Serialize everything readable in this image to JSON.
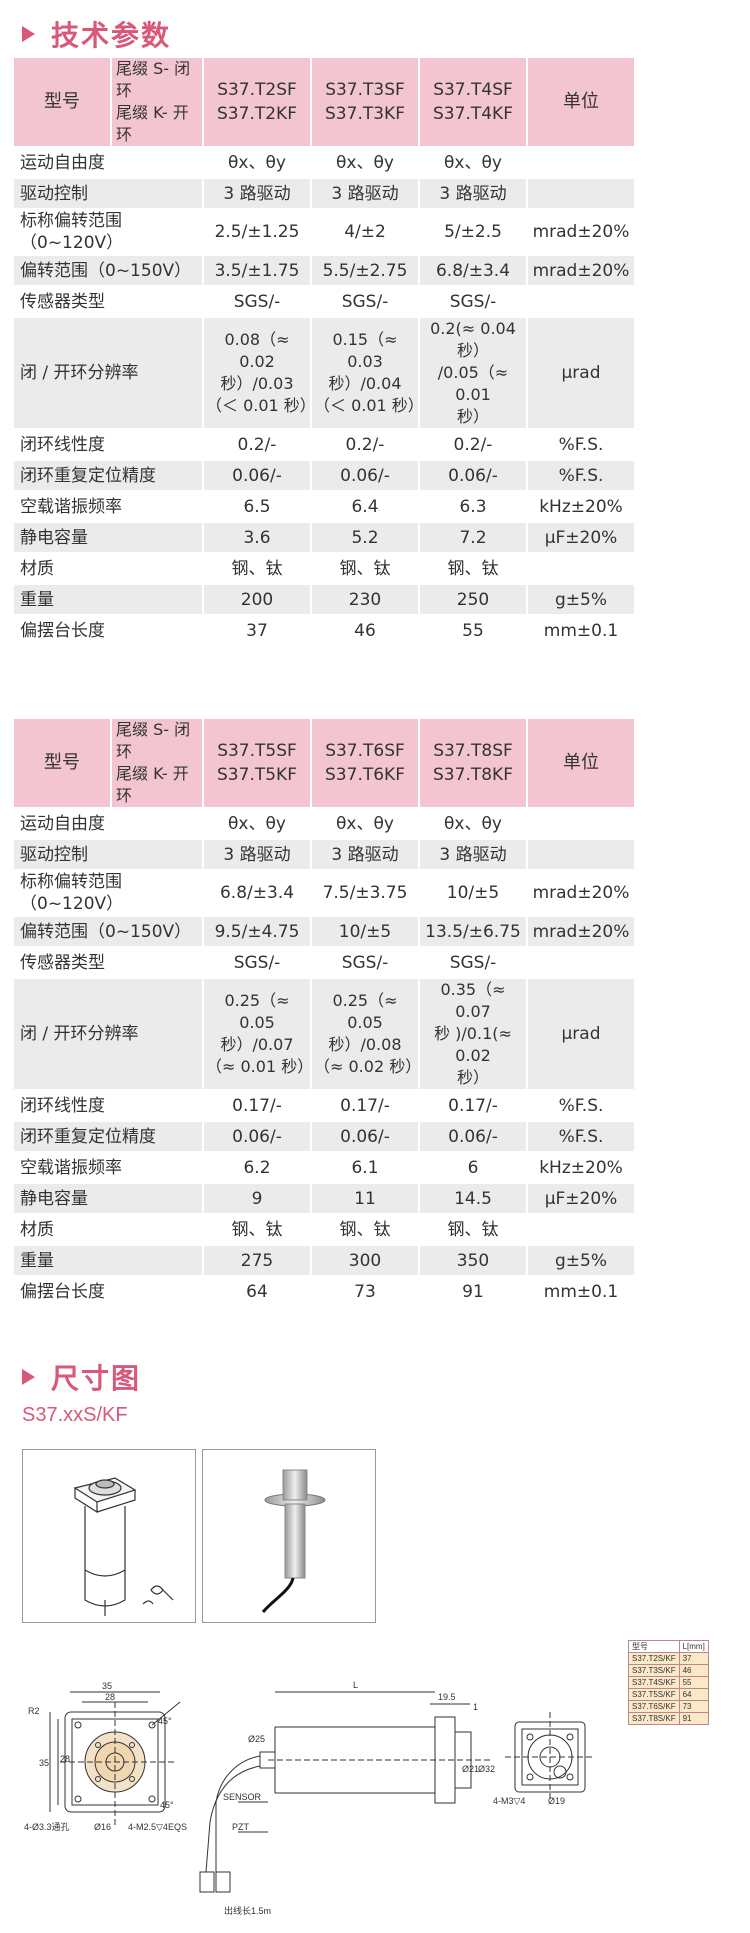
{
  "sections": {
    "tech_params": "技术参数",
    "dimensions": "尺寸图",
    "dimensions_subtitle": "S37.xxS/KF"
  },
  "table1": {
    "header": {
      "model_label": "型号",
      "suffix_s": "尾缀 S- 闭环",
      "suffix_k": "尾缀 K- 开环",
      "models": [
        {
          "a": "S37.T2SF",
          "b": "S37.T2KF"
        },
        {
          "a": "S37.T3SF",
          "b": "S37.T3KF"
        },
        {
          "a": "S37.T4SF",
          "b": "S37.T4KF"
        }
      ],
      "unit_label": "单位"
    },
    "rows": [
      {
        "label": "运动自由度",
        "v": [
          "θx、θy",
          "θx、θy",
          "θx、θy"
        ],
        "unit": ""
      },
      {
        "label": "驱动控制",
        "v": [
          "3 路驱动",
          "3 路驱动",
          "3 路驱动"
        ],
        "unit": ""
      },
      {
        "label": "标称偏转范围（0~120V）",
        "v": [
          "2.5/±1.25",
          "4/±2",
          "5/±2.5"
        ],
        "unit": "mrad±20%"
      },
      {
        "label": "偏转范围（0~150V）",
        "v": [
          "3.5/±1.75",
          "5.5/±2.75",
          "6.8/±3.4"
        ],
        "unit": "mrad±20%"
      },
      {
        "label": "传感器类型",
        "v": [
          "SGS/-",
          "SGS/-",
          "SGS/-"
        ],
        "unit": ""
      },
      {
        "label": "闭 / 开环分辨率",
        "v": [
          [
            "0.08（≈ 0.02",
            "秒）/0.03",
            "（＜ 0.01 秒）"
          ],
          [
            "0.15（≈ 0.03",
            "秒）/0.04",
            "（＜ 0.01 秒）"
          ],
          [
            "0.2(≈ 0.04 秒）",
            "/0.05（≈ 0.01",
            "秒）"
          ]
        ],
        "unit": "μrad"
      },
      {
        "label": "闭环线性度",
        "v": [
          "0.2/-",
          "0.2/-",
          "0.2/-"
        ],
        "unit": "%F.S."
      },
      {
        "label": "闭环重复定位精度",
        "v": [
          "0.06/-",
          "0.06/-",
          "0.06/-"
        ],
        "unit": "%F.S."
      },
      {
        "label": "空载谐振频率",
        "v": [
          "6.5",
          "6.4",
          "6.3"
        ],
        "unit": "kHz±20%"
      },
      {
        "label": "静电容量",
        "v": [
          "3.6",
          "5.2",
          "7.2"
        ],
        "unit": "μF±20%"
      },
      {
        "label": "材质",
        "v": [
          "钢、钛",
          "钢、钛",
          "钢、钛"
        ],
        "unit": ""
      },
      {
        "label": "重量",
        "v": [
          "200",
          "230",
          "250"
        ],
        "unit": "g±5%"
      },
      {
        "label": "偏摆台长度",
        "v": [
          "37",
          "46",
          "55"
        ],
        "unit": "mm±0.1"
      }
    ]
  },
  "table2": {
    "header": {
      "model_label": "型号",
      "suffix_s": "尾缀 S- 闭环",
      "suffix_k": "尾缀 K- 开环",
      "models": [
        {
          "a": "S37.T5SF",
          "b": "S37.T5KF"
        },
        {
          "a": "S37.T6SF",
          "b": "S37.T6KF"
        },
        {
          "a": "S37.T8SF",
          "b": "S37.T8KF"
        }
      ],
      "unit_label": "单位"
    },
    "rows": [
      {
        "label": "运动自由度",
        "v": [
          "θx、θy",
          "θx、θy",
          "θx、θy"
        ],
        "unit": ""
      },
      {
        "label": "驱动控制",
        "v": [
          "3 路驱动",
          "3 路驱动",
          "3 路驱动"
        ],
        "unit": ""
      },
      {
        "label": "标称偏转范围（0~120V）",
        "v": [
          "6.8/±3.4",
          "7.5/±3.75",
          "10/±5"
        ],
        "unit": "mrad±20%"
      },
      {
        "label": "偏转范围（0~150V）",
        "v": [
          "9.5/±4.75",
          "10/±5",
          "13.5/±6.75"
        ],
        "unit": "mrad±20%"
      },
      {
        "label": "传感器类型",
        "v": [
          "SGS/-",
          "SGS/-",
          "SGS/-"
        ],
        "unit": ""
      },
      {
        "label": "闭 / 开环分辨率",
        "v": [
          [
            "0.25（≈ 0.05",
            "秒）/0.07",
            "（≈ 0.01 秒）"
          ],
          [
            "0.25（≈ 0.05",
            "秒）/0.08",
            "（≈ 0.02 秒）"
          ],
          [
            "0.35（≈ 0.07",
            "秒 )/0.1(≈ 0.02",
            "秒）"
          ]
        ],
        "unit": "μrad"
      },
      {
        "label": "闭环线性度",
        "v": [
          "0.17/-",
          "0.17/-",
          "0.17/-"
        ],
        "unit": "%F.S."
      },
      {
        "label": "闭环重复定位精度",
        "v": [
          "0.06/-",
          "0.06/-",
          "0.06/-"
        ],
        "unit": "%F.S."
      },
      {
        "label": "空载谐振频率",
        "v": [
          "6.2",
          "6.1",
          "6"
        ],
        "unit": "kHz±20%"
      },
      {
        "label": "静电容量",
        "v": [
          "9",
          "11",
          "14.5"
        ],
        "unit": "μF±20%"
      },
      {
        "label": "材质",
        "v": [
          "钢、钛",
          "钢、钛",
          "钢、钛"
        ],
        "unit": ""
      },
      {
        "label": "重量",
        "v": [
          "275",
          "300",
          "350"
        ],
        "unit": "g±5%"
      },
      {
        "label": "偏摆台长度",
        "v": [
          "64",
          "73",
          "91"
        ],
        "unit": "mm±0.1"
      }
    ]
  },
  "drawing": {
    "front": {
      "w_outer": "35",
      "w_inner": "28",
      "h_outer": "35",
      "h_inner": "28",
      "corner": "R2",
      "holes": "4-Ø3.3通孔",
      "center": "Ø16",
      "screws": "4-M2.5▽4EQS",
      "angle": "45°"
    },
    "side": {
      "length": "L",
      "flange": "19.5",
      "t": "1",
      "d_left": "Ø25",
      "d_right": "Ø21",
      "d_far": "Ø32",
      "sensor": "SENSOR",
      "pzt": "PZT",
      "cable": "出线长1.5m"
    },
    "back": {
      "screws": "4-M3▽4",
      "center": "Ø19"
    },
    "length_table": {
      "head_model": "型号",
      "head_len": "L[mm]",
      "rows": [
        [
          "S37.T2S/KF",
          "37"
        ],
        [
          "S37.T3S/KF",
          "46"
        ],
        [
          "S37.T4S/KF",
          "55"
        ],
        [
          "S37.T5S/KF",
          "64"
        ],
        [
          "S37.T6S/KF",
          "73"
        ],
        [
          "S37.T8S/KF",
          "91"
        ]
      ]
    }
  }
}
